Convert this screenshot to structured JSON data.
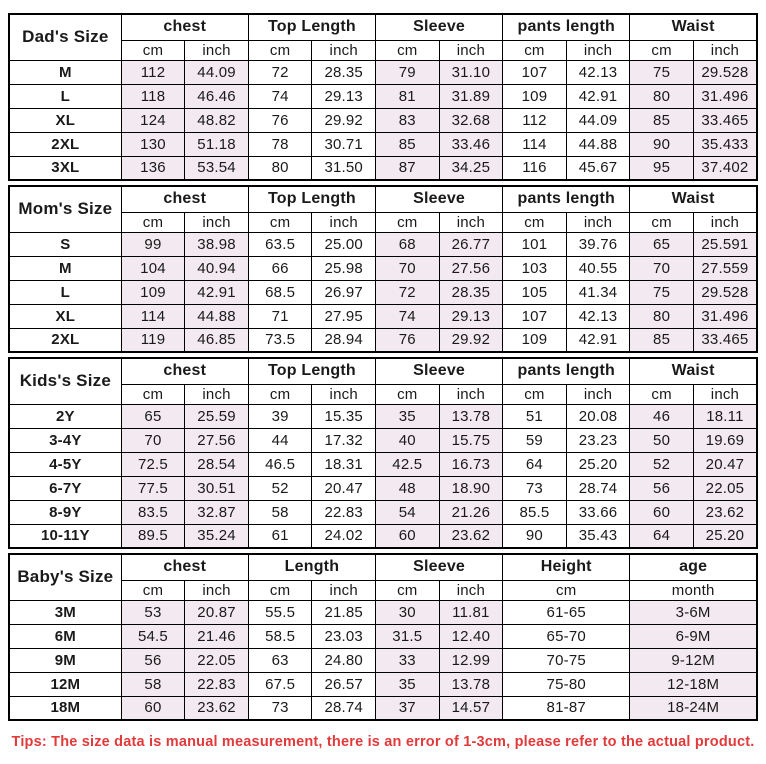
{
  "colors": {
    "shaded_bg": "#f3e9f0",
    "tips_text": "#e23a3a",
    "border": "#000000"
  },
  "tips": {
    "text": "Tips: The size data is manual measurement, there is an error of 1-3cm, please refer to the actual product."
  },
  "sections": [
    {
      "label": "Dad's Size",
      "groups": [
        {
          "label": "chest",
          "sub": [
            "cm",
            "inch"
          ],
          "shaded": true
        },
        {
          "label": "Top Length",
          "sub": [
            "cm",
            "inch"
          ],
          "shaded": false
        },
        {
          "label": "Sleeve",
          "sub": [
            "cm",
            "inch"
          ],
          "shaded": true
        },
        {
          "label": "pants length",
          "sub": [
            "cm",
            "inch"
          ],
          "shaded": false
        },
        {
          "label": "Waist",
          "sub": [
            "cm",
            "inch"
          ],
          "shaded": true
        }
      ],
      "rows": [
        {
          "size": "M",
          "values": [
            "112",
            "44.09",
            "72",
            "28.35",
            "79",
            "31.10",
            "107",
            "42.13",
            "75",
            "29.528"
          ]
        },
        {
          "size": "L",
          "values": [
            "118",
            "46.46",
            "74",
            "29.13",
            "81",
            "31.89",
            "109",
            "42.91",
            "80",
            "31.496"
          ]
        },
        {
          "size": "XL",
          "values": [
            "124",
            "48.82",
            "76",
            "29.92",
            "83",
            "32.68",
            "112",
            "44.09",
            "85",
            "33.465"
          ]
        },
        {
          "size": "2XL",
          "values": [
            "130",
            "51.18",
            "78",
            "30.71",
            "85",
            "33.46",
            "114",
            "44.88",
            "90",
            "35.433"
          ]
        },
        {
          "size": "3XL",
          "values": [
            "136",
            "53.54",
            "80",
            "31.50",
            "87",
            "34.25",
            "116",
            "45.67",
            "95",
            "37.402"
          ]
        }
      ]
    },
    {
      "label": "Mom's Size",
      "groups": [
        {
          "label": "chest",
          "sub": [
            "cm",
            "inch"
          ],
          "shaded": true
        },
        {
          "label": "Top Length",
          "sub": [
            "cm",
            "inch"
          ],
          "shaded": false
        },
        {
          "label": "Sleeve",
          "sub": [
            "cm",
            "inch"
          ],
          "shaded": true
        },
        {
          "label": "pants length",
          "sub": [
            "cm",
            "inch"
          ],
          "shaded": false
        },
        {
          "label": "Waist",
          "sub": [
            "cm",
            "inch"
          ],
          "shaded": true
        }
      ],
      "rows": [
        {
          "size": "S",
          "values": [
            "99",
            "38.98",
            "63.5",
            "25.00",
            "68",
            "26.77",
            "101",
            "39.76",
            "65",
            "25.591"
          ]
        },
        {
          "size": "M",
          "values": [
            "104",
            "40.94",
            "66",
            "25.98",
            "70",
            "27.56",
            "103",
            "40.55",
            "70",
            "27.559"
          ]
        },
        {
          "size": "L",
          "values": [
            "109",
            "42.91",
            "68.5",
            "26.97",
            "72",
            "28.35",
            "105",
            "41.34",
            "75",
            "29.528"
          ]
        },
        {
          "size": "XL",
          "values": [
            "114",
            "44.88",
            "71",
            "27.95",
            "74",
            "29.13",
            "107",
            "42.13",
            "80",
            "31.496"
          ]
        },
        {
          "size": "2XL",
          "values": [
            "119",
            "46.85",
            "73.5",
            "28.94",
            "76",
            "29.92",
            "109",
            "42.91",
            "85",
            "33.465"
          ]
        }
      ]
    },
    {
      "label": "Kids's Size",
      "groups": [
        {
          "label": "chest",
          "sub": [
            "cm",
            "inch"
          ],
          "shaded": true
        },
        {
          "label": "Top Length",
          "sub": [
            "cm",
            "inch"
          ],
          "shaded": false
        },
        {
          "label": "Sleeve",
          "sub": [
            "cm",
            "inch"
          ],
          "shaded": true
        },
        {
          "label": "pants length",
          "sub": [
            "cm",
            "inch"
          ],
          "shaded": false
        },
        {
          "label": "Waist",
          "sub": [
            "cm",
            "inch"
          ],
          "shaded": true
        }
      ],
      "rows": [
        {
          "size": "2Y",
          "values": [
            "65",
            "25.59",
            "39",
            "15.35",
            "35",
            "13.78",
            "51",
            "20.08",
            "46",
            "18.11"
          ]
        },
        {
          "size": "3-4Y",
          "values": [
            "70",
            "27.56",
            "44",
            "17.32",
            "40",
            "15.75",
            "59",
            "23.23",
            "50",
            "19.69"
          ]
        },
        {
          "size": "4-5Y",
          "values": [
            "72.5",
            "28.54",
            "46.5",
            "18.31",
            "42.5",
            "16.73",
            "64",
            "25.20",
            "52",
            "20.47"
          ]
        },
        {
          "size": "6-7Y",
          "values": [
            "77.5",
            "30.51",
            "52",
            "20.47",
            "48",
            "18.90",
            "73",
            "28.74",
            "56",
            "22.05"
          ]
        },
        {
          "size": "8-9Y",
          "values": [
            "83.5",
            "32.87",
            "58",
            "22.83",
            "54",
            "21.26",
            "85.5",
            "33.66",
            "60",
            "23.62"
          ]
        },
        {
          "size": "10-11Y",
          "values": [
            "89.5",
            "35.24",
            "61",
            "24.02",
            "60",
            "23.62",
            "90",
            "35.43",
            "64",
            "25.20"
          ]
        }
      ]
    },
    {
      "label": "Baby's Size",
      "groups": [
        {
          "label": "chest",
          "sub": [
            "cm",
            "inch"
          ],
          "shaded": true
        },
        {
          "label": "Length",
          "sub": [
            "cm",
            "inch"
          ],
          "shaded": false
        },
        {
          "label": "Sleeve",
          "sub": [
            "cm",
            "inch"
          ],
          "shaded": true
        },
        {
          "label": "Height",
          "sub": [
            "cm"
          ],
          "shaded": false
        },
        {
          "label": "age",
          "sub": [
            "month"
          ],
          "shaded": true
        }
      ],
      "rows": [
        {
          "size": "3M",
          "values": [
            "53",
            "20.87",
            "55.5",
            "21.85",
            "30",
            "11.81",
            "61-65",
            "3-6M"
          ]
        },
        {
          "size": "6M",
          "values": [
            "54.5",
            "21.46",
            "58.5",
            "23.03",
            "31.5",
            "12.40",
            "65-70",
            "6-9M"
          ]
        },
        {
          "size": "9M",
          "values": [
            "56",
            "22.05",
            "63",
            "24.80",
            "33",
            "12.99",
            "70-75",
            "9-12M"
          ]
        },
        {
          "size": "12M",
          "values": [
            "58",
            "22.83",
            "67.5",
            "26.57",
            "35",
            "13.78",
            "75-80",
            "12-18M"
          ]
        },
        {
          "size": "18M",
          "values": [
            "60",
            "23.62",
            "73",
            "28.74",
            "37",
            "14.57",
            "81-87",
            "18-24M"
          ]
        }
      ]
    }
  ]
}
